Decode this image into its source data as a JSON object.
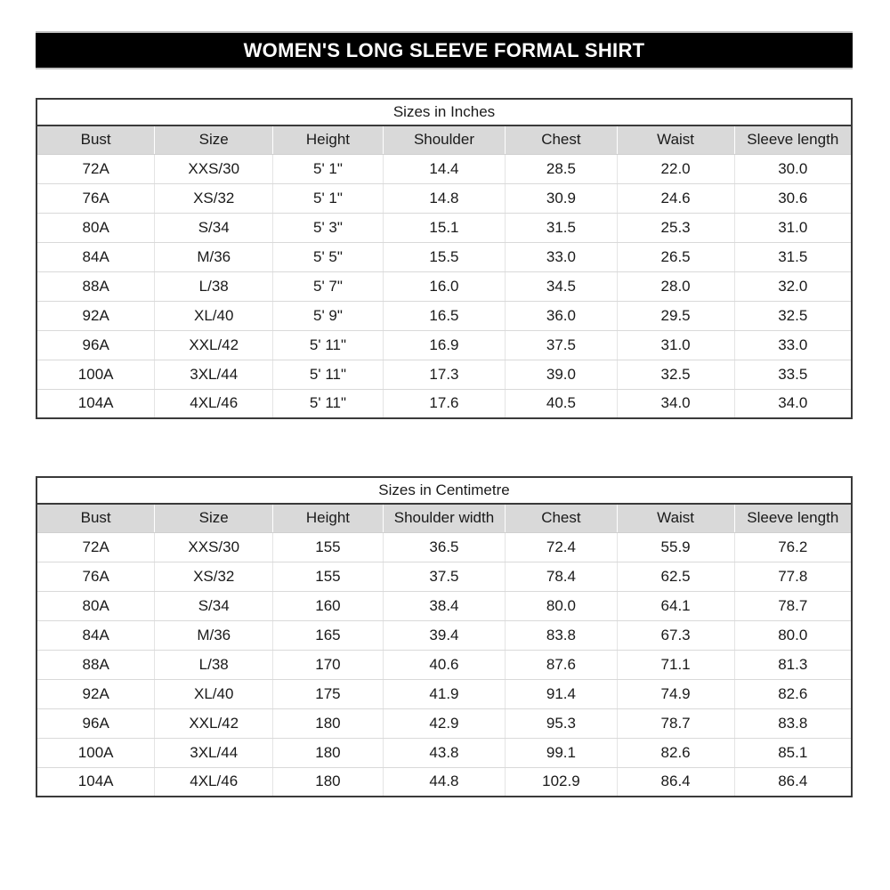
{
  "banner": {
    "title": "WOMEN'S LONG SLEEVE FORMAL SHIRT"
  },
  "colors": {
    "banner_bg": "#000000",
    "banner_text": "#ffffff",
    "header_bg": "#d9d9d9",
    "outer_border": "#3a3a3a",
    "text": "#1a1a1a"
  },
  "tables": [
    {
      "name": "sizes-in-inches-table",
      "title": "Sizes in Inches",
      "headers": [
        "Bust",
        "Size",
        "Height",
        "Shoulder",
        "Chest",
        "Waist",
        "Sleeve length"
      ],
      "rows": [
        [
          "72A",
          "XXS/30",
          "5' 1\"",
          "14.4",
          "28.5",
          "22.0",
          "30.0"
        ],
        [
          "76A",
          "XS/32",
          "5' 1\"",
          "14.8",
          "30.9",
          "24.6",
          "30.6"
        ],
        [
          "80A",
          "S/34",
          "5' 3\"",
          "15.1",
          "31.5",
          "25.3",
          "31.0"
        ],
        [
          "84A",
          "M/36",
          "5' 5\"",
          "15.5",
          "33.0",
          "26.5",
          "31.5"
        ],
        [
          "88A",
          "L/38",
          "5' 7\"",
          "16.0",
          "34.5",
          "28.0",
          "32.0"
        ],
        [
          "92A",
          "XL/40",
          "5' 9\"",
          "16.5",
          "36.0",
          "29.5",
          "32.5"
        ],
        [
          "96A",
          "XXL/42",
          "5' 11\"",
          "16.9",
          "37.5",
          "31.0",
          "33.0"
        ],
        [
          "100A",
          "3XL/44",
          "5' 11\"",
          "17.3",
          "39.0",
          "32.5",
          "33.5"
        ],
        [
          "104A",
          "4XL/46",
          "5' 11\"",
          "17.6",
          "40.5",
          "34.0",
          "34.0"
        ]
      ]
    },
    {
      "name": "sizes-in-centimetre-table",
      "title": "Sizes in Centimetre",
      "headers": [
        "Bust",
        "Size",
        "Height",
        "Shoulder width",
        "Chest",
        "Waist",
        "Sleeve length"
      ],
      "rows": [
        [
          "72A",
          "XXS/30",
          "155",
          "36.5",
          "72.4",
          "55.9",
          "76.2"
        ],
        [
          "76A",
          "XS/32",
          "155",
          "37.5",
          "78.4",
          "62.5",
          "77.8"
        ],
        [
          "80A",
          "S/34",
          "160",
          "38.4",
          "80.0",
          "64.1",
          "78.7"
        ],
        [
          "84A",
          "M/36",
          "165",
          "39.4",
          "83.8",
          "67.3",
          "80.0"
        ],
        [
          "88A",
          "L/38",
          "170",
          "40.6",
          "87.6",
          "71.1",
          "81.3"
        ],
        [
          "92A",
          "XL/40",
          "175",
          "41.9",
          "91.4",
          "74.9",
          "82.6"
        ],
        [
          "96A",
          "XXL/42",
          "180",
          "42.9",
          "95.3",
          "78.7",
          "83.8"
        ],
        [
          "100A",
          "3XL/44",
          "180",
          "43.8",
          "99.1",
          "82.6",
          "85.1"
        ],
        [
          "104A",
          "4XL/46",
          "180",
          "44.8",
          "102.9",
          "86.4",
          "86.4"
        ]
      ]
    }
  ]
}
